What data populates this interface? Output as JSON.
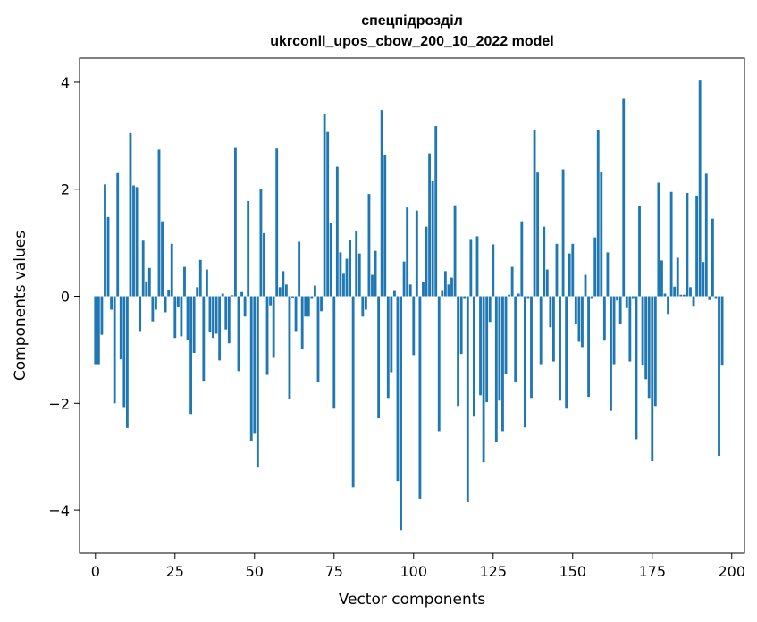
{
  "chart_data": {
    "type": "bar",
    "title_line1": "спецпідрозділ",
    "title_line2": "ukrconll_upos_cbow_200_10_2022 model",
    "xlabel": "Vector components",
    "ylabel": "Components values",
    "xlim": [
      -5,
      204
    ],
    "ylim": [
      -4.8,
      4.45
    ],
    "xticks": [
      0,
      25,
      50,
      75,
      100,
      125,
      150,
      175,
      200
    ],
    "yticks": [
      -4,
      -2,
      0,
      2,
      4
    ],
    "ytick_labels": [
      "−4",
      "−2",
      "0",
      "2",
      "4"
    ],
    "bar_color": "#1f77b4",
    "grid": false,
    "values": [
      -1.27,
      -1.27,
      -0.72,
      2.09,
      1.48,
      -0.25,
      -2.0,
      2.3,
      -1.18,
      -2.07,
      -2.46,
      3.05,
      2.07,
      2.04,
      -0.65,
      1.04,
      0.28,
      0.53,
      -0.47,
      -0.25,
      2.74,
      1.4,
      -0.3,
      0.12,
      0.98,
      -0.78,
      -0.2,
      -0.75,
      0.55,
      -0.82,
      -2.2,
      -1.06,
      0.17,
      0.68,
      -1.58,
      0.5,
      -0.67,
      -0.78,
      -0.7,
      -1.2,
      0.05,
      -0.62,
      -0.88,
      0.02,
      2.77,
      -1.4,
      0.08,
      -0.38,
      1.78,
      -2.7,
      -2.57,
      -3.2,
      2.0,
      1.18,
      -1.47,
      -0.17,
      -1.15,
      2.76,
      0.17,
      0.47,
      0.22,
      -1.93,
      -0.03,
      -0.65,
      1.02,
      -0.98,
      -0.38,
      -0.38,
      -0.05,
      0.2,
      -1.6,
      -0.28,
      3.4,
      3.07,
      1.37,
      -2.1,
      2.42,
      0.82,
      0.42,
      0.7,
      1.05,
      -3.57,
      1.22,
      0.8,
      -0.38,
      -0.25,
      1.91,
      0.4,
      0.85,
      -2.28,
      3.48,
      2.64,
      -1.9,
      -1.42,
      0.1,
      -3.45,
      -4.37,
      0.65,
      1.66,
      0.22,
      -1.1,
      1.6,
      -3.78,
      0.27,
      1.3,
      2.67,
      2.15,
      3.18,
      -2.52,
      0.1,
      0.47,
      0.22,
      0.35,
      1.7,
      -2.05,
      -1.08,
      -0.05,
      -3.85,
      1.07,
      -2.25,
      1.12,
      -1.85,
      -3.1,
      -1.98,
      -0.48,
      0.97,
      -2.73,
      -1.95,
      -2.52,
      -1.45,
      0.03,
      0.55,
      -1.6,
      0.05,
      1.4,
      -2.45,
      -0.05,
      -1.9,
      3.11,
      2.31,
      -1.27,
      1.3,
      0.5,
      -0.58,
      -1.22,
      0.98,
      -1.95,
      2.37,
      -2.1,
      0.8,
      0.98,
      -0.52,
      -0.85,
      -0.95,
      0.4,
      -1.88,
      -0.05,
      1.1,
      3.1,
      2.32,
      -0.83,
      0.82,
      -2.14,
      -1.27,
      -0.08,
      -0.52,
      3.69,
      -0.22,
      -1.22,
      -0.05,
      -2.67,
      1.68,
      -1.28,
      -1.55,
      -1.9,
      -3.08,
      -2.05,
      2.12,
      0.67,
      0.05,
      -0.33,
      1.95,
      0.18,
      0.72,
      0.03,
      0.03,
      1.93,
      0.17,
      -0.18,
      1.88,
      4.03,
      0.64,
      2.29,
      -0.07,
      1.45,
      -0.05,
      -2.98,
      -1.28
    ]
  }
}
